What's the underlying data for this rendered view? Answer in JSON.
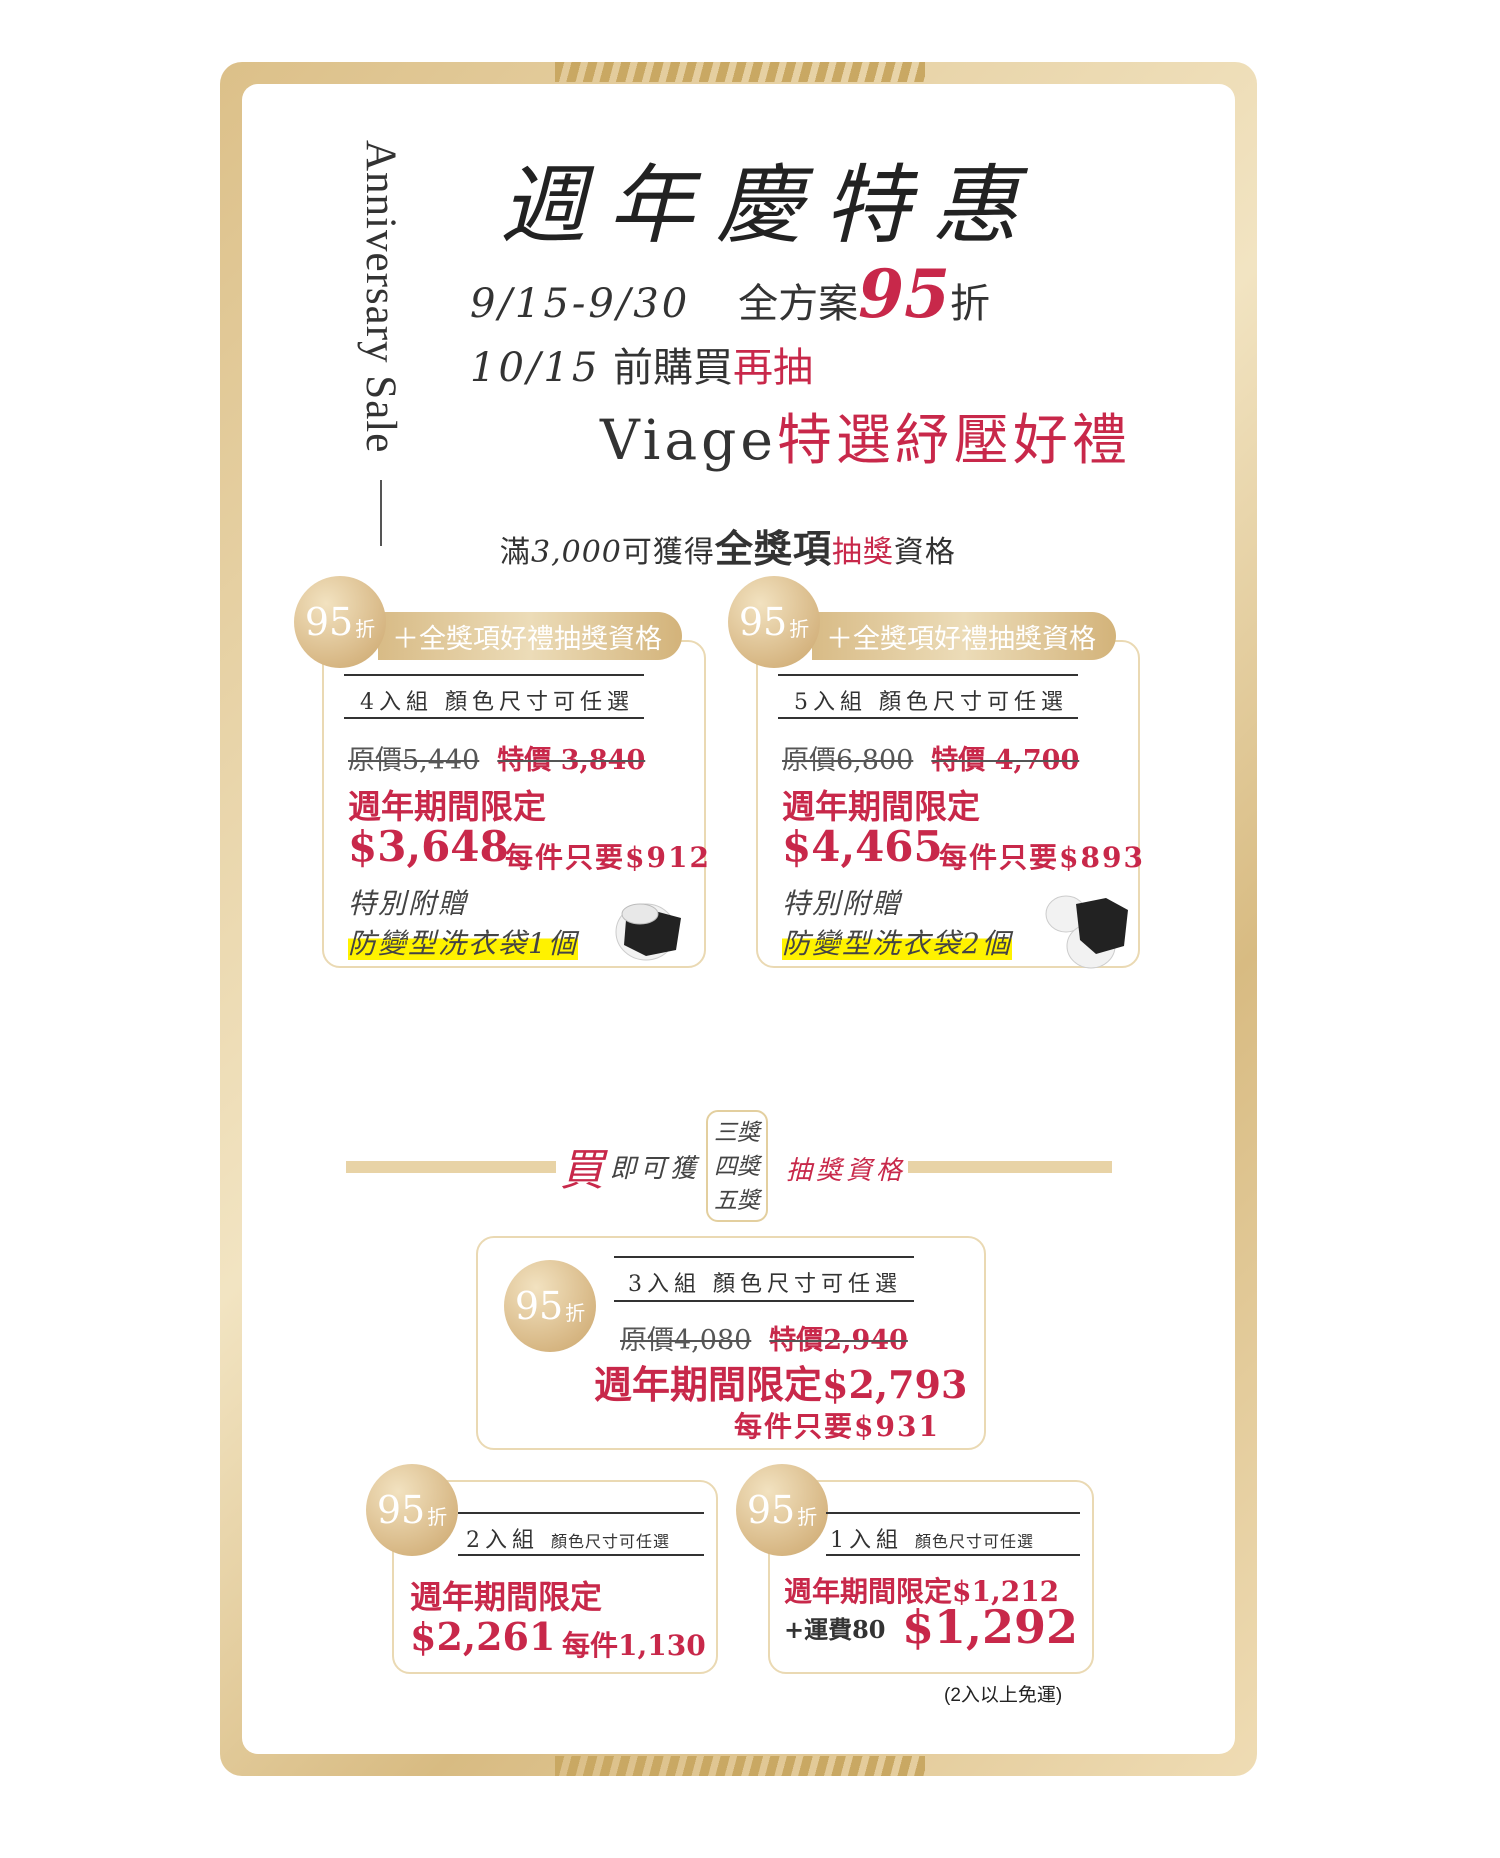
{
  "header": {
    "vertical_title": "Anniversary Sale",
    "title": "週年慶特惠",
    "date_range": "9/15-9/30",
    "discount_prefix": "全方案",
    "discount_number": "95",
    "discount_suffix": "折",
    "draw_date": "10/15",
    "draw_text": " 前購買",
    "draw_red": "再抽",
    "gift_brand": "Viage",
    "gift_red": "特選紓壓好禮"
  },
  "qualify": {
    "prefix": "滿",
    "amount": "3,000",
    "text": "可獲得",
    "bold": "全獎項",
    "red": "抽獎",
    "suffix": "資格"
  },
  "badge": {
    "number": "95",
    "unit": "折"
  },
  "pill_label": "＋全獎項好禮抽獎資格",
  "packs": [
    {
      "name": "4入組  顏色尺寸可任選",
      "original": "原價5,440",
      "special": "特價 3,840",
      "period": "週年期間限定",
      "price": "$3,648",
      "each": "每件只要$912",
      "gift_label": "特別附贈",
      "gift": "防變型洗衣袋1個"
    },
    {
      "name": "5入組  顏色尺寸可任選",
      "original": "原價6,800",
      "special": "特價 4,700",
      "period": "週年期間限定",
      "price": "$4,465",
      "each": "每件只要$893",
      "gift_label": "特別附贈",
      "gift": "防變型洗衣袋2個"
    }
  ],
  "mid": {
    "buy": "買",
    "text": "即可獲",
    "prizes": [
      "三獎",
      "四獎",
      "五獎"
    ],
    "suffix": "抽獎資格"
  },
  "pack3": {
    "name": "3入組  顏色尺寸可任選",
    "original": "原價4,080",
    "special": "特價2,940",
    "period_price": "週年期間限定$2,793",
    "each": "每件只要$931"
  },
  "pack2": {
    "name": "2入組",
    "opt": "顏色尺寸可任選",
    "period": "週年期間限定",
    "price": "$2,261",
    "each": "每件1,130"
  },
  "pack1": {
    "name": "1入組",
    "opt": "顏色尺寸可任選",
    "period_price": "週年期間限定$1,212",
    "shipping": "+運費80",
    "price": "$1,292",
    "note": "(2入以上免運)"
  },
  "colors": {
    "accent_red": "#c8284a",
    "gold": "#d8bb86",
    "highlight": "#fff200"
  }
}
